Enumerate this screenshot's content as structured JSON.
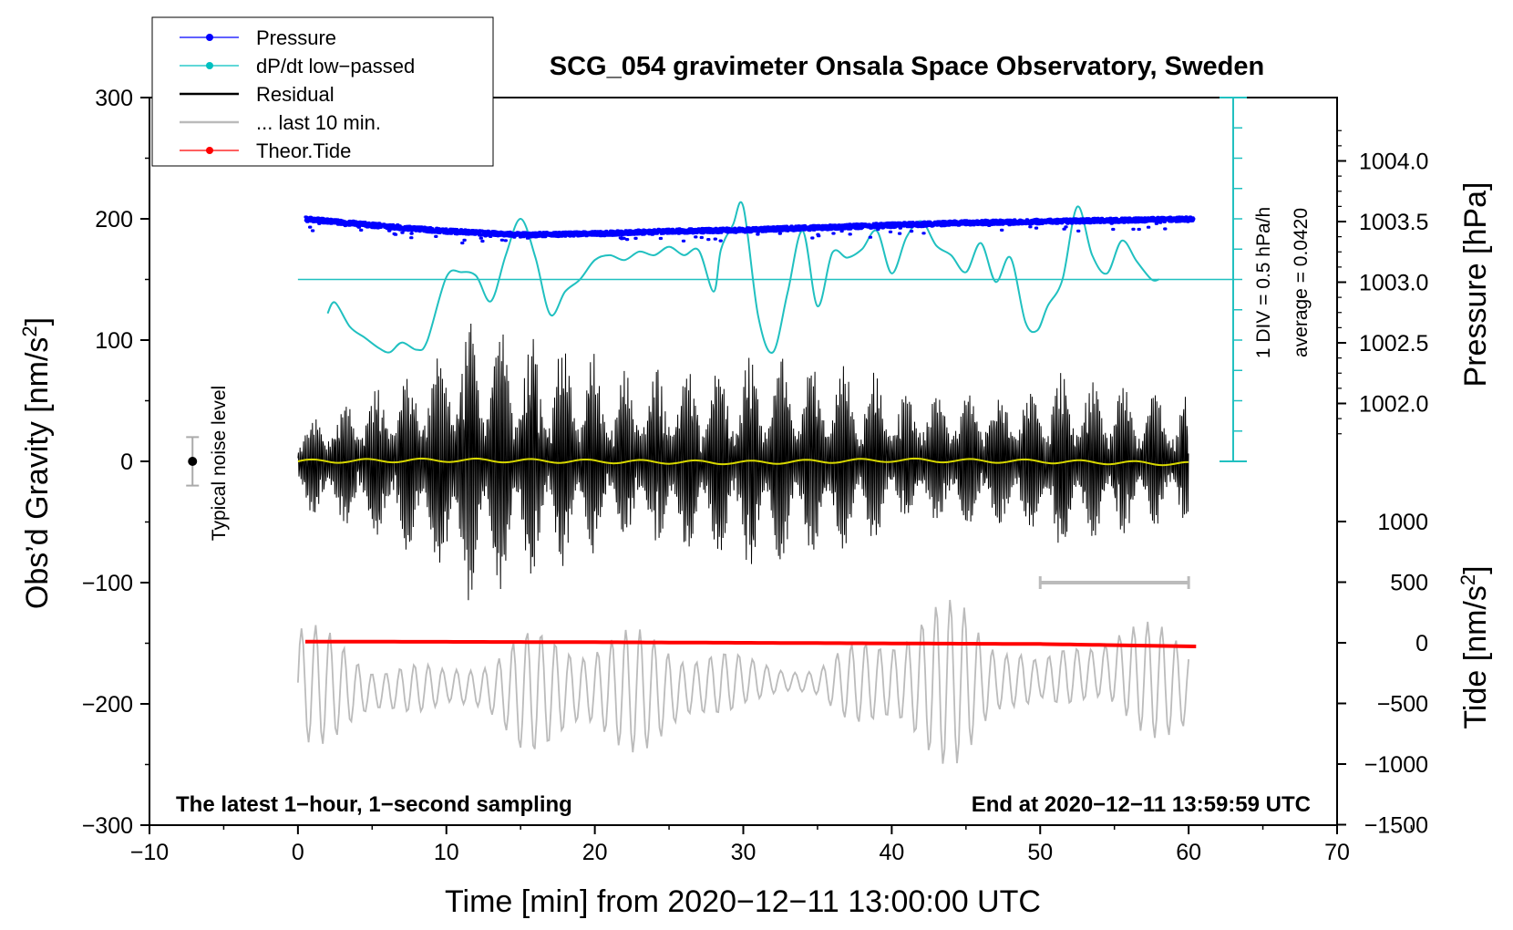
{
  "chart_data": {
    "type": "line",
    "title": "SCG_054 gravimeter Onsala Space Observatory, Sweden",
    "xlabel": "Time [min] from 2020−12−11 13:00:00 UTC",
    "ylabel_left": "Obs’d Gravity [nm/s",
    "ylabel_left_sup": "2",
    "ylabel_left_end": "]",
    "ylabel_right_pressure": "Pressure [hPa]",
    "ylabel_right_tide": "Tide [nm/s",
    "ylabel_right_tide_sup": "2",
    "ylabel_right_tide_end": "]",
    "xlim": [
      -10,
      70
    ],
    "ylim": [
      -300,
      300
    ],
    "x_ticks": [
      "−10",
      "0",
      "10",
      "20",
      "30",
      "40",
      "50",
      "60",
      "70"
    ],
    "y_ticks": [
      "300",
      "200",
      "100",
      "0",
      "−100",
      "−200",
      "−300"
    ],
    "pressure_axis": {
      "ticks": [
        "1004.0",
        "1003.5",
        "1003.0",
        "1002.5",
        "1002.0"
      ],
      "values": [
        1004.0,
        1003.5,
        1003.0,
        1002.5,
        1002.0
      ]
    },
    "tide_axis": {
      "ticks": [
        "1000",
        "500",
        "0",
        "−500",
        "−1000",
        "−1500"
      ],
      "values": [
        1000,
        500,
        0,
        -500,
        -1000,
        -1500
      ]
    },
    "annotations": {
      "bottom_left": "The latest 1−hour, 1−second sampling",
      "bottom_right": "End at 2020−12−11 13:59:59 UTC",
      "div_label": "1 DIV = 0.5 hPa/h",
      "average_label": "average = 0.0420",
      "noise_label": "Typical noise level"
    },
    "legend": [
      {
        "label": "Pressure",
        "color": "#0000ff",
        "marker": true
      },
      {
        "label": "dP/dt low−passed",
        "color": "#00c0c0",
        "marker": true
      },
      {
        "label": "Residual",
        "color": "#000000",
        "marker": false
      },
      {
        "label": "... last 10 min.",
        "color": "#bbbbbb",
        "marker": false
      },
      {
        "label": "Theor.Tide",
        "color": "#ff0000",
        "marker": true
      }
    ],
    "series": [
      {
        "name": "Pressure",
        "color": "#0000ff",
        "unit": "hPa",
        "x": [
          0.5,
          5,
          10,
          15,
          20,
          25,
          30,
          35,
          40,
          45,
          50,
          55,
          60.3
        ],
        "values": [
          1003.52,
          1003.47,
          1003.42,
          1003.39,
          1003.4,
          1003.42,
          1003.43,
          1003.45,
          1003.47,
          1003.49,
          1003.5,
          1003.51,
          1003.52
        ]
      },
      {
        "name": "dP/dt low−passed",
        "color": "#20c0c0",
        "unit": "gravity-axis units",
        "x": [
          2,
          2.5,
          3.5,
          4.5,
          5.5,
          6.2,
          7,
          8,
          8.7,
          10,
          11,
          12,
          13,
          14,
          15,
          16,
          17,
          18,
          19,
          20,
          21,
          22,
          23,
          24,
          25,
          26,
          27,
          28,
          28.5,
          29.3,
          30,
          31,
          32,
          33,
          34,
          35,
          36,
          37,
          38,
          39,
          40,
          41,
          42,
          43,
          44,
          45,
          46,
          47,
          48,
          49,
          49.8,
          50.5,
          51.5,
          52.5,
          53.5,
          54.5,
          55.5,
          56.5,
          57.5,
          58
        ],
        "values": [
          122,
          131,
          111,
          102,
          93,
          90,
          98,
          92,
          99,
          152,
          156,
          153,
          132,
          170,
          200,
          168,
          121,
          140,
          150,
          166,
          170,
          166,
          173,
          170,
          177,
          170,
          174,
          140,
          175,
          195,
          210,
          120,
          90,
          140,
          190,
          128,
          172,
          168,
          175,
          190,
          155,
          185,
          198,
          178,
          170,
          156,
          180,
          148,
          168,
          115,
          108,
          128,
          150,
          210,
          170,
          155,
          182,
          165,
          150,
          150
        ]
      },
      {
        "name": "Residual",
        "color": "#000000",
        "x": [
          0,
          10,
          20,
          30,
          40,
          50,
          60
        ],
        "envelope_peak_values": [
          40,
          125,
          90,
          94,
          80,
          85,
          60
        ],
        "envelope_trough_values": [
          -55,
          -120,
          -75,
          -100,
          -70,
          -85,
          -55
        ]
      },
      {
        "name": "Residual low−passed",
        "color": "#d8d800",
        "x": [
          0,
          10,
          20,
          30,
          40,
          50,
          60
        ],
        "values": [
          0,
          1,
          0,
          -1,
          1,
          0,
          -2
        ]
      },
      {
        "name": "... last 10 min.",
        "color": "#bbbbbb",
        "unit": "gravity-axis units",
        "x": [
          0,
          5,
          10,
          15,
          20,
          25,
          30,
          35,
          40,
          45,
          50,
          55,
          60
        ],
        "envelope_peak_values": [
          -125,
          -160,
          -170,
          -140,
          -135,
          -140,
          -160,
          -170,
          -125,
          -110,
          -165,
          -125,
          -140
        ],
        "envelope_trough_values": [
          -240,
          -220,
          -200,
          -240,
          -240,
          -240,
          -200,
          -195,
          -240,
          -255,
          -195,
          -220,
          -235
        ]
      },
      {
        "name": "Theor.Tide",
        "color": "#ff0000",
        "unit": "nm/s²",
        "x": [
          0.5,
          10,
          20,
          30,
          40,
          50,
          60.5
        ],
        "values": [
          10,
          8,
          5,
          0,
          -5,
          -10,
          -30
        ]
      }
    ],
    "last_10_min_bar": {
      "x_range": [
        50,
        60
      ]
    },
    "noise_bar": {
      "x": -7.1,
      "y_range": [
        -20,
        20
      ]
    }
  }
}
